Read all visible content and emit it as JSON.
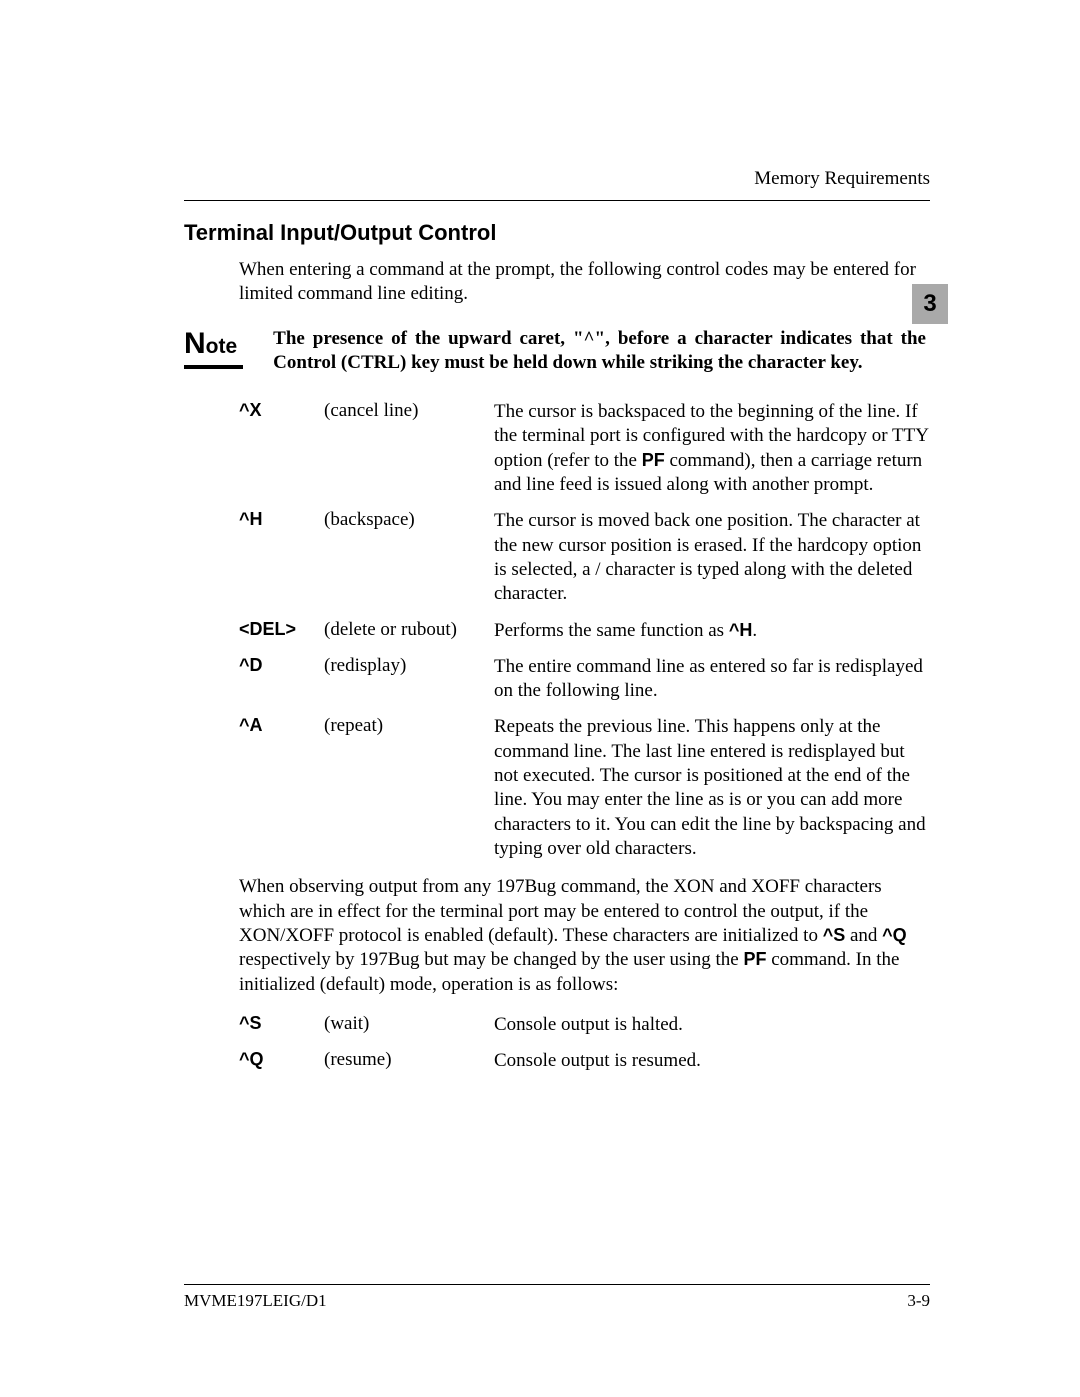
{
  "header": {
    "running_head": "Memory Requirements"
  },
  "chapter_tab": "3",
  "section": {
    "title": "Terminal Input/Output Control",
    "intro": "When entering a command at the prompt, the following control codes may be entered for limited command line editing."
  },
  "note": {
    "label_big": "N",
    "label_rest": "ote",
    "text": "The presence of the upward caret, \"^\", before a character indicates that the Control (CTRL) key must be held down while striking the character key."
  },
  "commands": [
    {
      "key": "^X",
      "action": "(cancel line)",
      "desc_pre": "The cursor is backspaced to the beginning of the line. If the terminal port is configured with the hardcopy or TTY option (refer to the ",
      "desc_bold": "PF",
      "desc_post": " command), then a carriage return and line feed is issued along with another prompt."
    },
    {
      "key": "^H",
      "action": "(backspace)",
      "desc_pre": "The cursor is moved back one position. The character at the new cursor position is erased. If the hardcopy option is selected, a  / character is typed along with the deleted character.",
      "desc_bold": "",
      "desc_post": ""
    },
    {
      "key": "<DEL>",
      "action": "(delete or rubout)",
      "desc_pre": "Performs the same function as ",
      "desc_bold": "^H",
      "desc_post": "."
    },
    {
      "key": "^D",
      "action": "(redisplay)",
      "desc_pre": "The entire command line as entered so far is redisplayed on the following line.",
      "desc_bold": "",
      "desc_post": ""
    },
    {
      "key": "^A",
      "action": "(repeat)",
      "desc_pre": "Repeats the previous line. This happens only at the command line. The last line entered is redisplayed but not executed. The cursor is positioned at the end of the line. You may enter the line as is or you can add more characters to it. You can edit the line by backspacing and typing over old characters.",
      "desc_bold": "",
      "desc_post": ""
    }
  ],
  "xon_para": {
    "p1": "When observing output from any 197Bug command, the XON and XOFF characters which are in effect for the terminal port may be entered to control the output, if the XON/XOFF protocol is enabled (default). These characters are initialized to ",
    "b1": "^S",
    "p2": " and ",
    "b2": "^Q",
    "p3": " respectively by 197Bug but may be changed by the user using the ",
    "b3": "PF",
    "p4": " command. In the initialized (default) mode, operation is as follows:"
  },
  "xon_commands": [
    {
      "key": "^S",
      "action": "(wait)",
      "desc": "Console output is halted."
    },
    {
      "key": "^Q",
      "action": "(resume)",
      "desc": "Console output is resumed."
    }
  ],
  "footer": {
    "left": "MVME197LEIG/D1",
    "right": "3-9"
  }
}
